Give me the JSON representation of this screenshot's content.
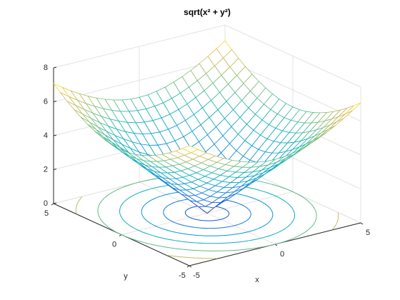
{
  "chart_data": {
    "type": "mesh",
    "title": "sqrt(x² + y²)",
    "xlabel": "x",
    "ylabel": "y",
    "x": [
      -5,
      -4.5,
      -4,
      -3.5,
      -3,
      -2.5,
      -2,
      -1.5,
      -1,
      -0.5,
      0,
      0.5,
      1,
      1.5,
      2,
      2.5,
      3,
      3.5,
      4,
      4.5,
      5
    ],
    "y": [
      -5,
      -4.5,
      -4,
      -3.5,
      -3,
      -2.5,
      -2,
      -1.5,
      -1,
      -0.5,
      0,
      0.5,
      1,
      1.5,
      2,
      2.5,
      3,
      3.5,
      4,
      4.5,
      5
    ],
    "z": [
      [
        7.07,
        6.73,
        6.4,
        6.1,
        5.83,
        5.59,
        5.39,
        5.22,
        5.1,
        5.02,
        5,
        5.02,
        5.1,
        5.22,
        5.39,
        5.59,
        5.83,
        6.1,
        6.4,
        6.73,
        7.07
      ],
      [
        6.73,
        6.36,
        6.02,
        5.7,
        5.41,
        5.15,
        4.92,
        4.74,
        4.61,
        4.53,
        4.5,
        4.53,
        4.61,
        4.74,
        4.92,
        5.15,
        5.41,
        5.7,
        6.02,
        6.36,
        6.73
      ],
      [
        6.4,
        6.02,
        5.66,
        5.32,
        5,
        4.72,
        4.47,
        4.27,
        4.12,
        4.03,
        4,
        4.03,
        4.12,
        4.27,
        4.47,
        4.72,
        5,
        5.32,
        5.66,
        6.02,
        6.4
      ],
      [
        6.1,
        5.7,
        5.32,
        4.95,
        4.61,
        4.3,
        4.03,
        3.81,
        3.64,
        3.54,
        3.5,
        3.54,
        3.64,
        3.81,
        4.03,
        4.3,
        4.61,
        4.95,
        5.32,
        5.7,
        6.1
      ],
      [
        5.83,
        5.41,
        5,
        4.61,
        4.24,
        3.91,
        3.61,
        3.35,
        3.16,
        3.04,
        3,
        3.04,
        3.16,
        3.35,
        3.61,
        3.91,
        4.24,
        4.61,
        5,
        5.41,
        5.83
      ],
      [
        5.59,
        5.15,
        4.72,
        4.3,
        3.91,
        3.54,
        3.2,
        2.92,
        2.69,
        2.55,
        2.5,
        2.55,
        2.69,
        2.92,
        3.2,
        3.54,
        3.91,
        4.3,
        4.72,
        5.15,
        5.59
      ],
      [
        5.39,
        4.92,
        4.47,
        4.03,
        3.61,
        3.2,
        2.83,
        2.5,
        2.24,
        2.06,
        2,
        2.06,
        2.24,
        2.5,
        2.83,
        3.2,
        3.61,
        4.03,
        4.47,
        4.92,
        5.39
      ],
      [
        5.22,
        4.74,
        4.27,
        3.81,
        3.35,
        2.92,
        2.5,
        2.12,
        1.8,
        1.58,
        1.5,
        1.58,
        1.8,
        2.12,
        2.5,
        2.92,
        3.35,
        3.81,
        4.27,
        4.74,
        5.22
      ],
      [
        5.1,
        4.61,
        4.12,
        3.64,
        3.16,
        2.69,
        2.24,
        1.8,
        1.41,
        1.12,
        1,
        1.12,
        1.41,
        1.8,
        2.24,
        2.69,
        3.16,
        3.64,
        4.12,
        4.61,
        5.1
      ],
      [
        5.02,
        4.53,
        4.03,
        3.54,
        3.04,
        2.55,
        2.06,
        1.58,
        1.12,
        0.71,
        0.5,
        0.71,
        1.12,
        1.58,
        2.06,
        2.55,
        3.04,
        3.54,
        4.03,
        4.53,
        5.02
      ],
      [
        5,
        4.5,
        4,
        3.5,
        3,
        2.5,
        2,
        1.5,
        1,
        0.5,
        0,
        0.5,
        1,
        1.5,
        2,
        2.5,
        3,
        3.5,
        4,
        4.5,
        5
      ],
      [
        5.02,
        4.53,
        4.03,
        3.54,
        3.04,
        2.55,
        2.06,
        1.58,
        1.12,
        0.71,
        0.5,
        0.71,
        1.12,
        1.58,
        2.06,
        2.55,
        3.04,
        3.54,
        4.03,
        4.53,
        5.02
      ],
      [
        5.1,
        4.61,
        4.12,
        3.64,
        3.16,
        2.69,
        2.24,
        1.8,
        1.41,
        1.12,
        1,
        1.12,
        1.41,
        1.8,
        2.24,
        2.69,
        3.16,
        3.64,
        4.12,
        4.61,
        5.1
      ],
      [
        5.22,
        4.74,
        4.27,
        3.81,
        3.35,
        2.92,
        2.5,
        2.12,
        1.8,
        1.58,
        1.5,
        1.58,
        1.8,
        2.12,
        2.5,
        2.92,
        3.35,
        3.81,
        4.27,
        4.74,
        5.22
      ],
      [
        5.39,
        4.92,
        4.47,
        4.03,
        3.61,
        3.2,
        2.83,
        2.5,
        2.24,
        2.06,
        2,
        2.06,
        2.24,
        2.5,
        2.83,
        3.2,
        3.61,
        4.03,
        4.47,
        4.92,
        5.39
      ],
      [
        5.59,
        5.15,
        4.72,
        4.3,
        3.91,
        3.54,
        3.2,
        2.92,
        2.69,
        2.55,
        2.5,
        2.55,
        2.69,
        2.92,
        3.2,
        3.54,
        3.91,
        4.3,
        4.72,
        5.15,
        5.59
      ],
      [
        5.83,
        5.41,
        5,
        4.61,
        4.24,
        3.91,
        3.61,
        3.35,
        3.16,
        3.04,
        3,
        3.04,
        3.16,
        3.35,
        3.61,
        3.91,
        4.24,
        4.61,
        5,
        5.41,
        5.83
      ],
      [
        6.1,
        5.7,
        5.32,
        4.95,
        4.61,
        4.3,
        4.03,
        3.81,
        3.64,
        3.54,
        3.5,
        3.54,
        3.64,
        3.81,
        4.03,
        4.3,
        4.61,
        4.95,
        5.32,
        5.7,
        6.1
      ],
      [
        6.4,
        6.02,
        5.66,
        5.32,
        5,
        4.72,
        4.47,
        4.27,
        4.12,
        4.03,
        4,
        4.03,
        4.12,
        4.27,
        4.47,
        4.72,
        5,
        5.32,
        5.66,
        6.02,
        6.4
      ],
      [
        6.73,
        6.36,
        6.02,
        5.7,
        5.41,
        5.15,
        4.92,
        4.74,
        4.61,
        4.53,
        4.5,
        4.53,
        4.61,
        4.74,
        4.92,
        5.15,
        5.41,
        5.7,
        6.02,
        6.36,
        6.73
      ],
      [
        7.07,
        6.73,
        6.4,
        6.1,
        5.83,
        5.59,
        5.39,
        5.22,
        5.1,
        5.02,
        5,
        5.02,
        5.1,
        5.22,
        5.39,
        5.59,
        5.83,
        6.1,
        6.4,
        6.73,
        7.07
      ]
    ],
    "contour_levels": [
      1,
      2,
      3,
      4,
      5,
      6,
      7
    ],
    "xlim": [
      -5,
      5
    ],
    "ylim": [
      -5,
      5
    ],
    "zlim": [
      0,
      8
    ],
    "xticks": [
      -5,
      0,
      5
    ],
    "yticks": [
      -5,
      0,
      5
    ],
    "zticks": [
      0,
      2,
      4,
      6,
      8
    ],
    "colormap": "parula",
    "grid": true
  }
}
